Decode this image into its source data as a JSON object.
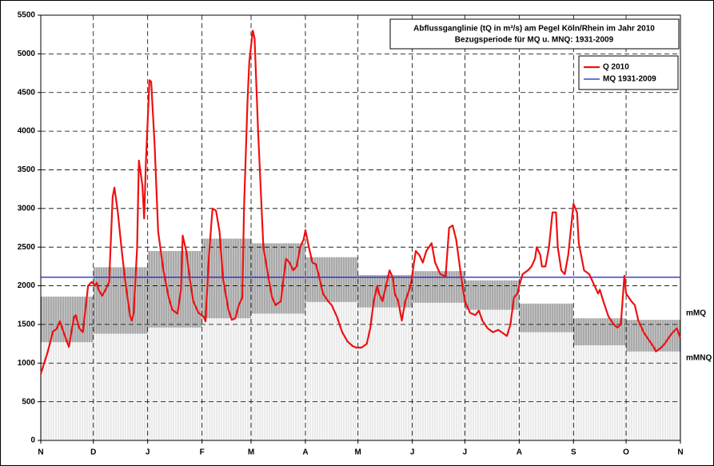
{
  "chart_data": {
    "type": "line",
    "title": "Abflussganglinie (tQ in m³/s) am Pegel Köln/Rhein im Jahr 2010",
    "subtitle": "Bezugsperiode für MQ u. MNQ: 1931-2009",
    "xlim": [
      0,
      365
    ],
    "xticks": [
      {
        "value": 0,
        "label": "N"
      },
      {
        "value": 30,
        "label": "D"
      },
      {
        "value": 61,
        "label": "J"
      },
      {
        "value": 92,
        "label": "F"
      },
      {
        "value": 120,
        "label": "M"
      },
      {
        "value": 151,
        "label": "A"
      },
      {
        "value": 181,
        "label": "M"
      },
      {
        "value": 212,
        "label": "J"
      },
      {
        "value": 242,
        "label": "J"
      },
      {
        "value": 273,
        "label": "A"
      },
      {
        "value": 304,
        "label": "S"
      },
      {
        "value": 334,
        "label": "O"
      },
      {
        "value": 365,
        "label": "N"
      }
    ],
    "ylim": [
      0,
      5500
    ],
    "yticks": [
      0,
      500,
      1000,
      1500,
      2000,
      2500,
      3000,
      3500,
      4000,
      4500,
      5000,
      5500
    ],
    "grid": true,
    "series": [
      {
        "name": "Q 2010",
        "color": "#ee1111",
        "x": [
          0,
          4,
          7,
          9,
          11,
          13,
          16,
          19,
          20,
          22,
          24,
          27,
          29,
          31,
          32,
          33,
          35,
          37,
          39,
          41,
          42,
          44,
          46,
          48,
          51,
          52,
          53,
          55,
          56,
          58,
          59,
          60,
          62,
          63,
          65,
          67,
          70,
          73,
          75,
          78,
          80,
          81,
          83,
          85,
          87,
          90,
          93,
          94,
          96,
          98,
          100,
          102,
          104,
          107,
          109,
          111,
          113,
          115,
          116,
          118,
          119,
          121,
          122,
          124,
          126,
          127,
          130,
          132,
          134,
          137,
          138,
          140,
          142,
          144,
          146,
          148,
          150,
          151,
          153,
          155,
          157,
          159,
          161,
          164,
          166,
          169,
          172,
          175,
          178,
          180,
          183,
          186,
          188,
          190,
          192,
          193,
          195,
          197,
          199,
          201,
          202,
          204,
          206,
          208,
          211,
          213,
          214,
          216,
          218,
          220,
          223,
          225,
          228,
          231,
          233,
          235,
          237,
          240,
          242,
          245,
          248,
          250,
          252,
          255,
          258,
          261,
          263,
          266,
          268,
          270,
          272,
          273,
          275,
          278,
          280,
          282,
          283,
          285,
          286,
          288,
          290,
          292,
          294,
          295,
          297,
          299,
          301,
          304,
          306,
          307,
          310,
          313,
          315,
          318,
          319,
          321,
          324,
          327,
          329,
          331,
          333,
          334,
          337,
          339,
          341,
          344,
          347,
          350,
          351,
          354,
          356,
          359,
          360,
          363,
          365
        ],
        "values": [
          860,
          1150,
          1410,
          1440,
          1540,
          1400,
          1210,
          1600,
          1620,
          1450,
          1400,
          2000,
          2050,
          2000,
          2040,
          1950,
          1870,
          1950,
          2050,
          3150,
          3270,
          2950,
          2500,
          2100,
          1600,
          1550,
          1650,
          2500,
          3620,
          3300,
          2870,
          3600,
          4660,
          4640,
          3800,
          2700,
          2200,
          1850,
          1690,
          1640,
          1950,
          2650,
          2450,
          2100,
          1800,
          1650,
          1600,
          1540,
          2400,
          3000,
          2970,
          2700,
          2100,
          1700,
          1560,
          1580,
          1750,
          1850,
          3000,
          4400,
          4900,
          5300,
          5200,
          4000,
          3000,
          2500,
          2100,
          1850,
          1750,
          1800,
          2000,
          2350,
          2300,
          2200,
          2250,
          2500,
          2600,
          2720,
          2500,
          2300,
          2280,
          2100,
          1900,
          1800,
          1750,
          1600,
          1400,
          1280,
          1220,
          1200,
          1200,
          1250,
          1450,
          1800,
          2000,
          1900,
          1800,
          2000,
          2200,
          2100,
          1900,
          1800,
          1550,
          1800,
          2000,
          2300,
          2450,
          2400,
          2300,
          2450,
          2550,
          2300,
          2150,
          2120,
          2750,
          2780,
          2600,
          2100,
          1800,
          1650,
          1620,
          1680,
          1550,
          1450,
          1400,
          1430,
          1400,
          1350,
          1500,
          1850,
          1900,
          2000,
          2150,
          2200,
          2250,
          2350,
          2500,
          2400,
          2250,
          2250,
          2500,
          2950,
          2950,
          2500,
          2200,
          2150,
          2400,
          3060,
          2950,
          2550,
          2200,
          2150,
          2050,
          1900,
          1950,
          1800,
          1600,
          1500,
          1460,
          1500,
          2130,
          1900,
          1800,
          1750,
          1550,
          1400,
          1300,
          1200,
          1150,
          1200,
          1250,
          1350,
          1380,
          1450,
          1320
        ]
      }
    ],
    "reference_lines": [
      {
        "name": "MQ 1931-2009",
        "color": "#1a1acc",
        "value": 2110
      }
    ],
    "bands": [
      {
        "name": "mMQ",
        "values": [
          1860,
          2240,
          2450,
          2610,
          2550,
          2370,
          2140,
          2190,
          2070,
          1770,
          1580,
          1560
        ]
      },
      {
        "name": "mMNQ",
        "values": [
          1270,
          1380,
          1460,
          1580,
          1640,
          1790,
          1720,
          1780,
          1690,
          1400,
          1230,
          1150
        ]
      }
    ]
  }
}
